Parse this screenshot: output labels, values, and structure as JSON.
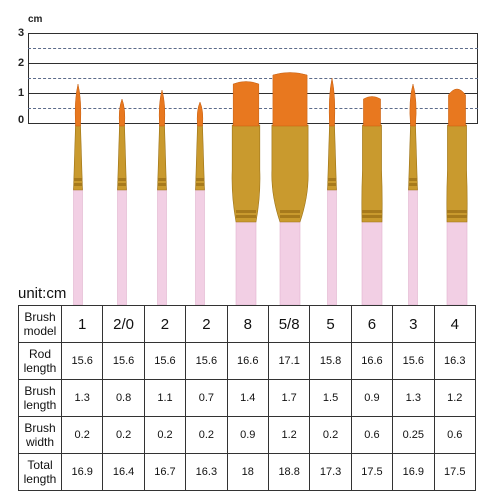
{
  "ruler": {
    "unit": "cm",
    "ticks": [
      "3",
      "2",
      "1",
      "0"
    ]
  },
  "unit_label": "unit:cm",
  "table": {
    "row_headers": [
      "Brush model",
      "Rod length",
      "Brush length",
      "Brush width",
      "Total length"
    ],
    "models": [
      "1",
      "2/0",
      "2",
      "2",
      "8",
      "5/8",
      "5",
      "6",
      "3",
      "4"
    ],
    "rod_length": [
      "15.6",
      "15.6",
      "15.6",
      "15.6",
      "16.6",
      "17.1",
      "15.8",
      "16.6",
      "15.6",
      "16.3"
    ],
    "brush_length": [
      "1.3",
      "0.8",
      "1.1",
      "0.7",
      "1.4",
      "1.7",
      "1.5",
      "0.9",
      "1.3",
      "1.2"
    ],
    "brush_width": [
      "0.2",
      "0.2",
      "0.2",
      "0.2",
      "0.9",
      "1.2",
      "0.2",
      "0.6",
      "0.25",
      "0.6"
    ],
    "total_length": [
      "16.9",
      "16.4",
      "16.7",
      "16.3",
      "18",
      "18.8",
      "17.3",
      "17.5",
      "16.9",
      "17.5"
    ]
  },
  "colors": {
    "bristle": "#e8781f",
    "ferrule": "#c99a2e",
    "handle": "#f2cfe4"
  },
  "brushes": [
    {
      "model": "1",
      "shape": "round"
    },
    {
      "model": "2/0",
      "shape": "round"
    },
    {
      "model": "2",
      "shape": "round"
    },
    {
      "model": "2",
      "shape": "round"
    },
    {
      "model": "8",
      "shape": "flat"
    },
    {
      "model": "5/8",
      "shape": "flat"
    },
    {
      "model": "5",
      "shape": "round"
    },
    {
      "model": "6",
      "shape": "flat"
    },
    {
      "model": "3",
      "shape": "round"
    },
    {
      "model": "4",
      "shape": "filbert"
    }
  ]
}
